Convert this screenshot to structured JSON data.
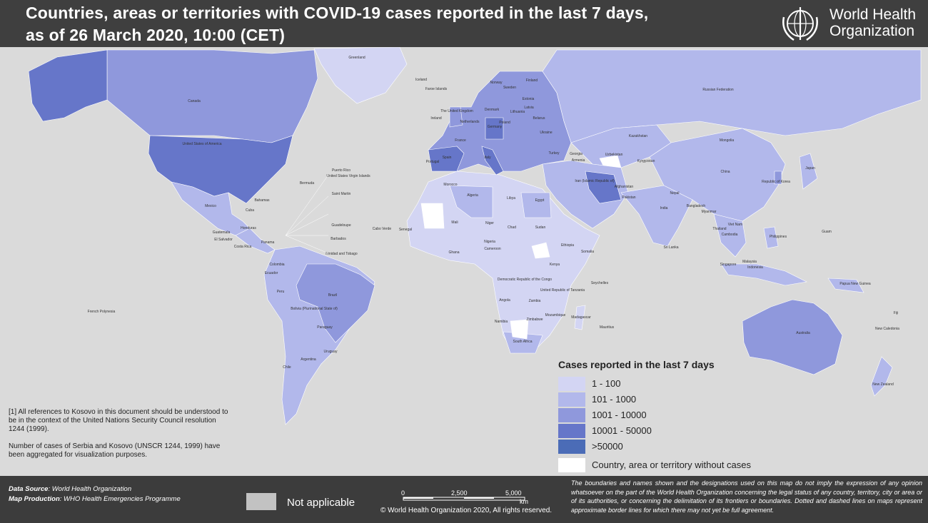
{
  "header": {
    "title_line1": "Countries, areas or territories with COVID-19  cases reported in the last 7 days,",
    "title_line2": "as of 26 March 2020, 10:00 (CET)",
    "org_line1": "World Health",
    "org_line2": "Organization"
  },
  "map": {
    "labels": [
      "Greenland",
      "Iceland",
      "Faroe Islands",
      "Norway",
      "Sweden",
      "Finland",
      "Russian Federation",
      "Canada",
      "United States of America",
      "The United Kingdom",
      "Ireland",
      "Netherlands",
      "Denmark",
      "Estonia",
      "Latvia",
      "Lithuania",
      "Belarus",
      "Poland",
      "Germany",
      "Ukraine",
      "Kazakhstan",
      "Mongolia",
      "France",
      "Italy",
      "Spain",
      "Portugal",
      "Turkey",
      "Georgia",
      "Armenia",
      "Uzbekistan",
      "Kyrgyzstan",
      "China",
      "Japan",
      "Republic of Korea",
      "Iran (Islamic Republic of)",
      "Afghanistan",
      "Pakistan",
      "India",
      "Nepal",
      "Bangladesh",
      "Myanmar",
      "Thailand",
      "Viet Nam",
      "Cambodia",
      "Philippines",
      "Malaysia",
      "Indonesia",
      "Singapore",
      "Sri Lanka",
      "Egypt",
      "Libya",
      "Algeria",
      "Morocco",
      "Mali",
      "Niger",
      "Chad",
      "Sudan",
      "Ethiopia",
      "Somalia",
      "Kenya",
      "Nigeria",
      "Cameroon",
      "Ghana",
      "Senegal",
      "Democratic Republic of the Congo",
      "Angola",
      "Zambia",
      "Zimbabwe",
      "Mozambique",
      "Madagascar",
      "Namibia",
      "South Africa",
      "United Republic of Tanzania",
      "Mexico",
      "Cuba",
      "Bahamas",
      "Colombia",
      "Ecuador",
      "Peru",
      "Brazil",
      "Bolivia (Plurinational State of)",
      "Paraguay",
      "Uruguay",
      "Argentina",
      "Chile",
      "Australia",
      "New Zealand",
      "Papua New Guinea",
      "French Polynesia",
      "Guam",
      "Fiji",
      "New Caledonia",
      "Seychelles",
      "Mauritius",
      "Cabo Verde",
      "Puerto Rico",
      "United States Virgin Islands",
      "Bermuda",
      "Saint Martin",
      "Guadeloupe",
      "Barbados",
      "Trinidad and Tobago",
      "Costa Rica",
      "Panama",
      "Guatemala",
      "El Salvador",
      "Honduras"
    ]
  },
  "legend": {
    "title": "Cases reported in the last 7 days",
    "items": [
      {
        "label": "1 - 100",
        "color": "#d3d5f3"
      },
      {
        "label": "101 - 1000",
        "color": "#b2b8eb"
      },
      {
        "label": "1001 - 10000",
        "color": "#8f98dc"
      },
      {
        "label": "10001 - 50000",
        "color": "#6676c9"
      },
      {
        "label": ">50000",
        "color": "#4b6cb7"
      },
      {
        "label": "Country, area or territory without cases",
        "color": "#ffffff"
      }
    ]
  },
  "notes": [
    "[1] All references to Kosovo in this document should be understood to be in the context of the United Nations Security Council resolution 1244 (1999).",
    "Number of cases of Serbia and Kosovo (UNSCR 1244, 1999) have been aggregated for visualization purposes."
  ],
  "footer": {
    "data_source_label": "Data Source",
    "data_source": ": World Health Organization",
    "map_production_label": "Map Production",
    "map_production": ": WHO Health Emergencies Programme",
    "not_applicable": "Not applicable",
    "scale": [
      "0",
      "2,500",
      "5,000"
    ],
    "scale_unit": "km",
    "copyright": "© World Health Organization 2020, All rights reserved.",
    "disclaimer": "The boundaries and names shown and the designations used on this map do not imply the expression of any opinion whatsoever on the part of the World Health Organization concerning the legal status of any country, territory, city or area or of its authorities, or concerning the delimitation of its frontiers or boundaries. Dotted and dashed lines on maps represent approximate border lines for which there may not yet be full agreement."
  }
}
